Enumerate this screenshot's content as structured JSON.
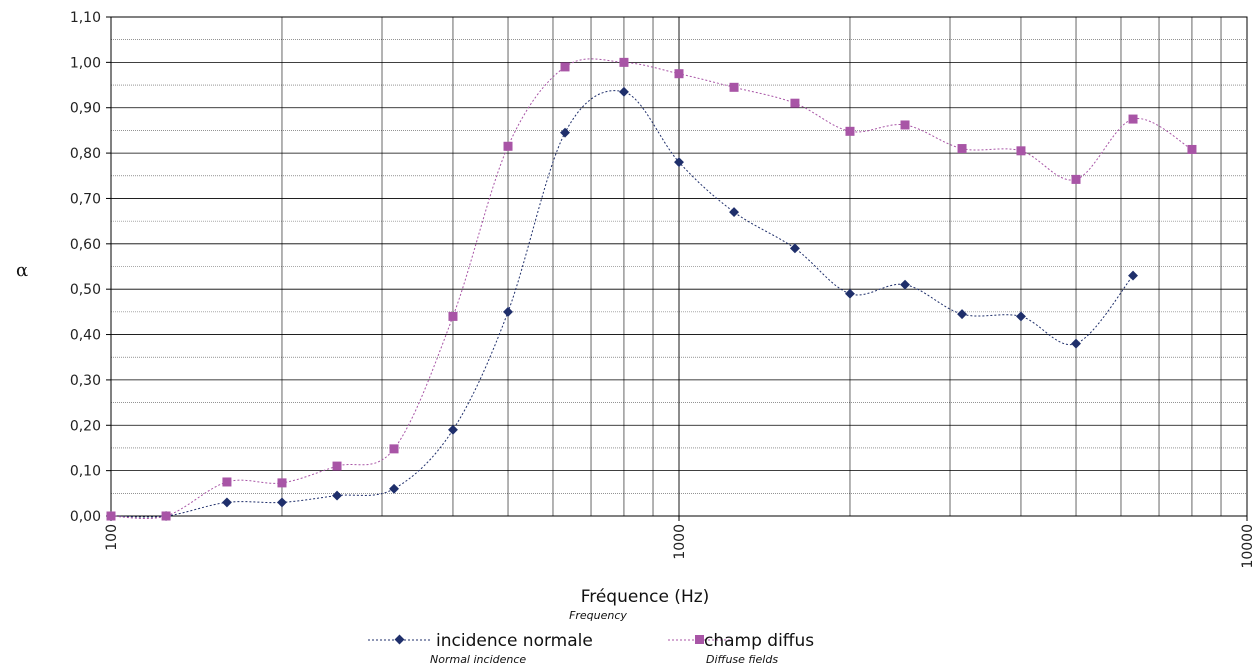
{
  "chart_data": {
    "type": "line",
    "title": "",
    "xlabel": "Fréquence  (Hz)",
    "xlabel_sub": "Frequency",
    "ylabel": "α",
    "x_scale": "log",
    "xlim": [
      100,
      10000
    ],
    "ylim": [
      0,
      1.1
    ],
    "x_ticks": [
      "100",
      "1000",
      "10000"
    ],
    "y_ticks": [
      "0,00",
      "0,10",
      "0,20",
      "0,30",
      "0,40",
      "0,50",
      "0,60",
      "0,70",
      "0,80",
      "0,90",
      "1,00",
      "1,10"
    ],
    "grid": true,
    "legend_position": "bottom",
    "series": [
      {
        "name": "incidence normale",
        "subname": "Normal incidence",
        "color": "#1f2f6b",
        "marker": "diamond",
        "x": [
          100,
          125,
          160,
          200,
          250,
          315,
          400,
          500,
          630,
          800,
          1000,
          1250,
          1600,
          2000,
          2500,
          3150,
          4000,
          5000,
          6300
        ],
        "y": [
          0.0,
          0.0,
          0.03,
          0.03,
          0.045,
          0.06,
          0.19,
          0.45,
          0.845,
          0.935,
          0.78,
          0.67,
          0.59,
          0.49,
          0.51,
          0.445,
          0.44,
          0.38,
          0.53
        ]
      },
      {
        "name": "champ diffus",
        "subname": "Diffuse fields",
        "color": "#a855a6",
        "marker": "square",
        "x": [
          100,
          125,
          160,
          200,
          250,
          315,
          400,
          500,
          630,
          800,
          1000,
          1250,
          1600,
          2000,
          2500,
          3150,
          4000,
          5000,
          6300,
          8000
        ],
        "y": [
          0.0,
          0.0,
          0.075,
          0.073,
          0.11,
          0.148,
          0.44,
          0.815,
          0.99,
          1.0,
          0.975,
          0.945,
          0.91,
          0.848,
          0.862,
          0.81,
          0.805,
          0.742,
          0.875,
          0.808
        ]
      }
    ]
  }
}
